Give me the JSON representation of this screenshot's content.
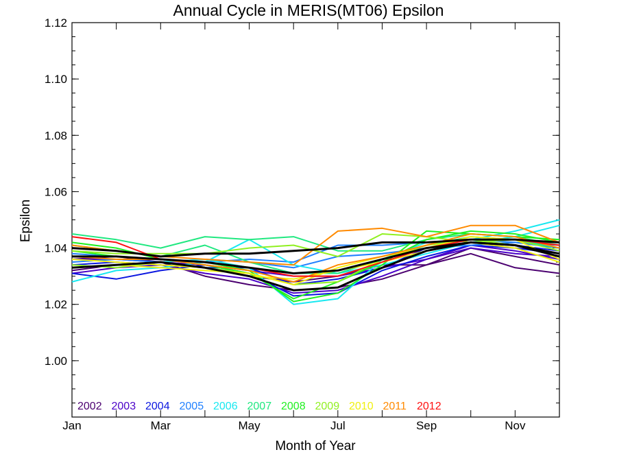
{
  "chart_data": {
    "type": "line",
    "title": "Annual Cycle in MERIS(MT06) Epsilon",
    "xlabel": "Month of Year",
    "ylabel": "Epsilon",
    "xlim": [
      1,
      12
    ],
    "ylim": [
      0.98,
      1.12
    ],
    "x_ticks": [
      {
        "value": 1,
        "label": "Jan"
      },
      {
        "value": 3,
        "label": "Mar"
      },
      {
        "value": 5,
        "label": "May"
      },
      {
        "value": 7,
        "label": "Jul"
      },
      {
        "value": 9,
        "label": "Sep"
      },
      {
        "value": 11,
        "label": "Nov"
      }
    ],
    "y_ticks": [
      {
        "value": 1.0,
        "label": "1.00"
      },
      {
        "value": 1.02,
        "label": "1.02"
      },
      {
        "value": 1.04,
        "label": "1.04"
      },
      {
        "value": 1.06,
        "label": "1.06"
      },
      {
        "value": 1.08,
        "label": "1.08"
      },
      {
        "value": 1.1,
        "label": "1.10"
      },
      {
        "value": 1.12,
        "label": "1.12"
      }
    ],
    "y_minor_step": 0.005,
    "grid": false,
    "legend_position": "bottom-left",
    "x": [
      1,
      2,
      3,
      4,
      5,
      6,
      7,
      8,
      9,
      10,
      11,
      12
    ],
    "series": [
      {
        "name": "2002",
        "color": "#4b0070",
        "values": [
          1.032,
          1.034,
          1.035,
          1.03,
          1.027,
          1.025,
          1.026,
          1.029,
          1.034,
          1.038,
          1.033,
          1.031
        ]
      },
      {
        "name": "2002",
        "color": "#4b0070",
        "values": [
          1.036,
          1.037,
          1.035,
          1.033,
          1.03,
          1.028,
          1.03,
          1.034,
          1.034,
          1.04,
          1.037,
          1.034
        ]
      },
      {
        "name": "2003",
        "color": "#4a00c8",
        "values": [
          1.031,
          1.033,
          1.034,
          1.031,
          1.029,
          1.024,
          1.025,
          1.03,
          1.036,
          1.041,
          1.039,
          1.036
        ]
      },
      {
        "name": "2003",
        "color": "#4a00c8",
        "values": [
          1.036,
          1.036,
          1.035,
          1.034,
          1.032,
          1.03,
          1.03,
          1.033,
          1.036,
          1.04,
          1.038,
          1.037
        ]
      },
      {
        "name": "2004",
        "color": "#0b17e0",
        "values": [
          1.031,
          1.029,
          1.032,
          1.034,
          1.031,
          1.023,
          1.024,
          1.032,
          1.037,
          1.041,
          1.04,
          1.038
        ]
      },
      {
        "name": "2004",
        "color": "#0b17e0",
        "values": [
          1.034,
          1.035,
          1.034,
          1.033,
          1.033,
          1.027,
          1.029,
          1.033,
          1.04,
          1.042,
          1.041,
          1.039
        ]
      },
      {
        "name": "2005",
        "color": "#2080ff",
        "values": [
          1.035,
          1.036,
          1.035,
          1.036,
          1.035,
          1.033,
          1.037,
          1.038,
          1.04,
          1.041,
          1.042,
          1.041
        ]
      },
      {
        "name": "2005",
        "color": "#2080ff",
        "values": [
          1.038,
          1.037,
          1.036,
          1.035,
          1.036,
          1.035,
          1.041,
          1.041,
          1.042,
          1.043,
          1.042,
          1.04
        ]
      },
      {
        "name": "2006",
        "color": "#18e8f0",
        "values": [
          1.028,
          1.032,
          1.033,
          1.035,
          1.043,
          1.034,
          1.031,
          1.034,
          1.038,
          1.042,
          1.044,
          1.048
        ]
      },
      {
        "name": "2006",
        "color": "#18e8f0",
        "values": [
          1.033,
          1.034,
          1.035,
          1.036,
          1.033,
          1.02,
          1.022,
          1.036,
          1.042,
          1.043,
          1.046,
          1.05
        ]
      },
      {
        "name": "2007",
        "color": "#20e880",
        "values": [
          1.045,
          1.043,
          1.04,
          1.044,
          1.043,
          1.044,
          1.039,
          1.039,
          1.043,
          1.045,
          1.044,
          1.041
        ]
      },
      {
        "name": "2007",
        "color": "#20e880",
        "values": [
          1.041,
          1.039,
          1.037,
          1.041,
          1.035,
          1.031,
          1.031,
          1.036,
          1.041,
          1.044,
          1.043,
          1.04
        ]
      },
      {
        "name": "2008",
        "color": "#20f020",
        "values": [
          1.042,
          1.04,
          1.036,
          1.035,
          1.032,
          1.021,
          1.024,
          1.034,
          1.046,
          1.045,
          1.044,
          1.043
        ]
      },
      {
        "name": "2008",
        "color": "#20f020",
        "values": [
          1.039,
          1.037,
          1.036,
          1.034,
          1.031,
          1.022,
          1.028,
          1.035,
          1.043,
          1.046,
          1.045,
          1.042
        ]
      },
      {
        "name": "2009",
        "color": "#90f020",
        "values": [
          1.039,
          1.038,
          1.038,
          1.038,
          1.04,
          1.041,
          1.037,
          1.045,
          1.044,
          1.042,
          1.043,
          1.039
        ]
      },
      {
        "name": "2009",
        "color": "#90f020",
        "values": [
          1.034,
          1.033,
          1.035,
          1.033,
          1.031,
          1.027,
          1.028,
          1.036,
          1.041,
          1.043,
          1.041,
          1.038
        ]
      },
      {
        "name": "2010",
        "color": "#f0f010",
        "values": [
          1.033,
          1.034,
          1.033,
          1.032,
          1.031,
          1.027,
          1.033,
          1.037,
          1.04,
          1.044,
          1.043,
          1.036
        ]
      },
      {
        "name": "2010",
        "color": "#f0f010",
        "values": [
          1.036,
          1.035,
          1.034,
          1.033,
          1.03,
          1.029,
          1.032,
          1.035,
          1.039,
          1.042,
          1.04,
          1.035
        ]
      },
      {
        "name": "2011",
        "color": "#ff8a00",
        "values": [
          1.041,
          1.039,
          1.037,
          1.036,
          1.035,
          1.034,
          1.046,
          1.047,
          1.044,
          1.048,
          1.048,
          1.042
        ]
      },
      {
        "name": "2011",
        "color": "#ff8a00",
        "values": [
          1.037,
          1.036,
          1.036,
          1.034,
          1.032,
          1.028,
          1.034,
          1.037,
          1.041,
          1.045,
          1.044,
          1.04
        ]
      },
      {
        "name": "2012",
        "color": "#ff1010",
        "values": [
          1.044,
          1.042,
          1.036,
          1.035,
          1.033,
          1.03,
          1.03,
          1.035,
          1.04,
          1.043,
          1.043,
          1.041
        ]
      },
      {
        "color": "#000000",
        "width": 3,
        "values": [
          1.04,
          1.039,
          1.037,
          1.038,
          1.038,
          1.039,
          1.04,
          1.042,
          1.042,
          1.043,
          1.043,
          1.042
        ]
      },
      {
        "color": "#000000",
        "width": 3,
        "values": [
          1.037,
          1.037,
          1.036,
          1.035,
          1.033,
          1.031,
          1.032,
          1.036,
          1.04,
          1.042,
          1.041,
          1.038
        ]
      },
      {
        "color": "#000000",
        "width": 3,
        "values": [
          1.033,
          1.034,
          1.035,
          1.033,
          1.03,
          1.025,
          1.026,
          1.033,
          1.039,
          1.042,
          1.041,
          1.037
        ]
      }
    ],
    "legend": [
      {
        "label": "2002",
        "color": "#4b0070"
      },
      {
        "label": "2003",
        "color": "#4a00c8"
      },
      {
        "label": "2004",
        "color": "#0b17e0"
      },
      {
        "label": "2005",
        "color": "#2080ff"
      },
      {
        "label": "2006",
        "color": "#18e8f0"
      },
      {
        "label": "2007",
        "color": "#20e880"
      },
      {
        "label": "2008",
        "color": "#20f020"
      },
      {
        "label": "2009",
        "color": "#90f020"
      },
      {
        "label": "2010",
        "color": "#f0f010"
      },
      {
        "label": "2011",
        "color": "#ff8a00"
      },
      {
        "label": "2012",
        "color": "#ff1010"
      }
    ]
  }
}
